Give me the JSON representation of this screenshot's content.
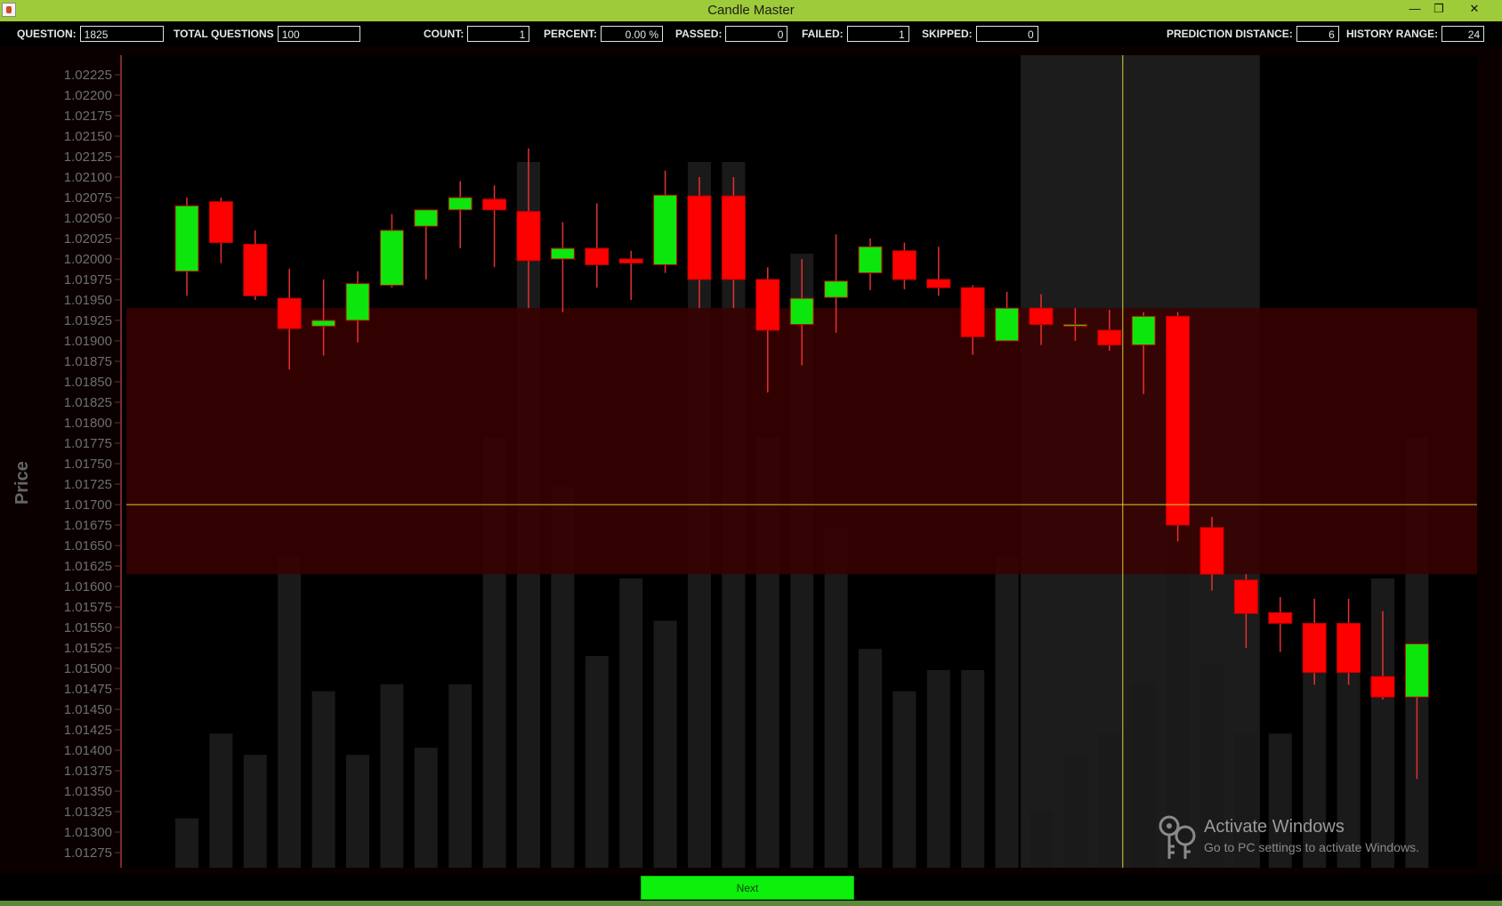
{
  "window": {
    "title": "Candle Master",
    "minimize_symbol": "—",
    "restore_symbol": "❐",
    "close_symbol": "✕"
  },
  "toolbar": {
    "question": {
      "label": "QUESTION:",
      "value": "1825"
    },
    "total_questions": {
      "label": "TOTAL QUESTIONS",
      "value": "100"
    },
    "count": {
      "label": "COUNT:",
      "value": "1"
    },
    "percent": {
      "label": "PERCENT:",
      "value": "0.00 %"
    },
    "passed": {
      "label": "PASSED:",
      "value": "0"
    },
    "failed": {
      "label": "FAILED:",
      "value": "1"
    },
    "skipped": {
      "label": "SKIPPED:",
      "value": "0"
    },
    "prediction_distance": {
      "label": "PREDICTION DISTANCE:",
      "value": "6"
    },
    "history_range": {
      "label": "HISTORY RANGE:",
      "value": "24"
    }
  },
  "colors": {
    "bull": "#0de60d",
    "bear": "#ff0000",
    "wick": "#e53030",
    "crosshair": "#d8d23a",
    "zone": "#3a0000",
    "highlight": "#1c1c1c",
    "volume": "#1a1a1a"
  },
  "chart_data": {
    "type": "candlestick",
    "ylabel": "Price",
    "ylim": [
      1.0125,
      1.0225
    ],
    "y_ticks": [
      "1.02225",
      "1.02200",
      "1.02175",
      "1.02150",
      "1.02125",
      "1.02100",
      "1.02075",
      "1.02050",
      "1.02025",
      "1.02000",
      "1.01975",
      "1.01950",
      "1.01925",
      "1.01900",
      "1.01875",
      "1.01850",
      "1.01825",
      "1.01800",
      "1.01775",
      "1.01750",
      "1.01725",
      "1.01700",
      "1.01675",
      "1.01650",
      "1.01625",
      "1.01600",
      "1.01575",
      "1.01550",
      "1.01525",
      "1.01500",
      "1.01475",
      "1.01450",
      "1.01425",
      "1.01400",
      "1.01375",
      "1.01350",
      "1.01325",
      "1.01300",
      "1.01275"
    ],
    "candles": [
      {
        "o": 1.01985,
        "h": 1.02075,
        "l": 1.01955,
        "c": 1.02065,
        "v": 0.07
      },
      {
        "o": 1.0207,
        "h": 1.02075,
        "l": 1.01995,
        "c": 1.0202,
        "v": 0.19
      },
      {
        "o": 1.02018,
        "h": 1.02035,
        "l": 1.0195,
        "c": 1.01955,
        "v": 0.16
      },
      {
        "o": 1.01952,
        "h": 1.01988,
        "l": 1.01865,
        "c": 1.01915,
        "v": 0.44
      },
      {
        "o": 1.01918,
        "h": 1.01975,
        "l": 1.01882,
        "c": 1.01925,
        "v": 0.25
      },
      {
        "o": 1.01925,
        "h": 1.01985,
        "l": 1.01898,
        "c": 1.0197,
        "v": 0.16
      },
      {
        "o": 1.01968,
        "h": 1.02055,
        "l": 1.01965,
        "c": 1.02035,
        "v": 0.26
      },
      {
        "o": 1.0204,
        "h": 1.0206,
        "l": 1.01975,
        "c": 1.0206,
        "v": 0.17
      },
      {
        "o": 1.0206,
        "h": 1.02095,
        "l": 1.02013,
        "c": 1.02075,
        "v": 0.26
      },
      {
        "o": 1.02073,
        "h": 1.0209,
        "l": 1.0199,
        "c": 1.0206,
        "v": 0.61
      },
      {
        "o": 1.02058,
        "h": 1.02135,
        "l": 1.0194,
        "c": 1.01998,
        "v": 1.0
      },
      {
        "o": 1.02,
        "h": 1.02045,
        "l": 1.01935,
        "c": 1.02013,
        "v": 0.54
      },
      {
        "o": 1.02013,
        "h": 1.02068,
        "l": 1.01965,
        "c": 1.01993,
        "v": 0.3
      },
      {
        "o": 1.02,
        "h": 1.0201,
        "l": 1.0195,
        "c": 1.01995,
        "v": 0.41
      },
      {
        "o": 1.01993,
        "h": 1.02108,
        "l": 1.01983,
        "c": 1.02078,
        "v": 0.35
      },
      {
        "o": 1.02077,
        "h": 1.021,
        "l": 1.0194,
        "c": 1.01975,
        "v": 1.0
      },
      {
        "o": 1.02077,
        "h": 1.021,
        "l": 1.0194,
        "c": 1.01975,
        "v": 1.0
      },
      {
        "o": 1.01975,
        "h": 1.0199,
        "l": 1.01837,
        "c": 1.01913,
        "v": 0.61
      },
      {
        "o": 1.0192,
        "h": 1.02,
        "l": 1.0187,
        "c": 1.01952,
        "v": 0.87
      },
      {
        "o": 1.01953,
        "h": 1.0203,
        "l": 1.0191,
        "c": 1.01973,
        "v": 0.48
      },
      {
        "o": 1.01983,
        "h": 1.02025,
        "l": 1.01962,
        "c": 1.02015,
        "v": 0.31
      },
      {
        "o": 1.0201,
        "h": 1.0202,
        "l": 1.01963,
        "c": 1.01975,
        "v": 0.25
      },
      {
        "o": 1.01975,
        "h": 1.02015,
        "l": 1.01955,
        "c": 1.01965,
        "v": 0.28
      },
      {
        "o": 1.01965,
        "h": 1.01968,
        "l": 1.01883,
        "c": 1.01905,
        "v": 0.28
      },
      {
        "o": 1.019,
        "h": 1.0196,
        "l": 1.019,
        "c": 1.0194,
        "v": 0.44
      },
      {
        "o": 1.0194,
        "h": 1.01957,
        "l": 1.01895,
        "c": 1.0192,
        "v": 0.08
      },
      {
        "o": 1.0192,
        "h": 1.0194,
        "l": 1.019,
        "c": 1.0192,
        "v": 0.16
      },
      {
        "o": 1.01913,
        "h": 1.01938,
        "l": 1.01888,
        "c": 1.01895,
        "v": 0.19
      },
      {
        "o": 1.01895,
        "h": 1.01935,
        "l": 1.01835,
        "c": 1.0193,
        "v": 0.26
      },
      {
        "o": 1.0193,
        "h": 1.01935,
        "l": 1.01655,
        "c": 1.01675,
        "v": 0.65
      },
      {
        "o": 1.01672,
        "h": 1.01685,
        "l": 1.01595,
        "c": 1.01615,
        "v": 0.29
      },
      {
        "o": 1.01608,
        "h": 1.01615,
        "l": 1.01525,
        "c": 1.01567,
        "v": 0.19
      },
      {
        "o": 1.01568,
        "h": 1.01587,
        "l": 1.0152,
        "c": 1.01555,
        "v": 0.19
      },
      {
        "o": 1.01555,
        "h": 1.01585,
        "l": 1.0148,
        "c": 1.01495,
        "v": 0.33
      },
      {
        "o": 1.01555,
        "h": 1.01585,
        "l": 1.0148,
        "c": 1.01495,
        "v": 0.33
      },
      {
        "o": 1.0149,
        "h": 1.0157,
        "l": 1.01462,
        "c": 1.01465,
        "v": 0.41
      },
      {
        "o": 1.01465,
        "h": 1.0153,
        "l": 1.01365,
        "c": 1.0153,
        "v": 0.61
      }
    ],
    "zone": {
      "top": 1.0194,
      "bottom": 1.01615
    },
    "crosshair_price": 1.017,
    "highlight_candles": [
      25,
      28
    ],
    "crosshair_candle": 27
  },
  "next_button": {
    "label": "Next"
  },
  "watermark": {
    "title": "Activate Windows",
    "subtitle": "Go to PC settings to activate Windows."
  }
}
